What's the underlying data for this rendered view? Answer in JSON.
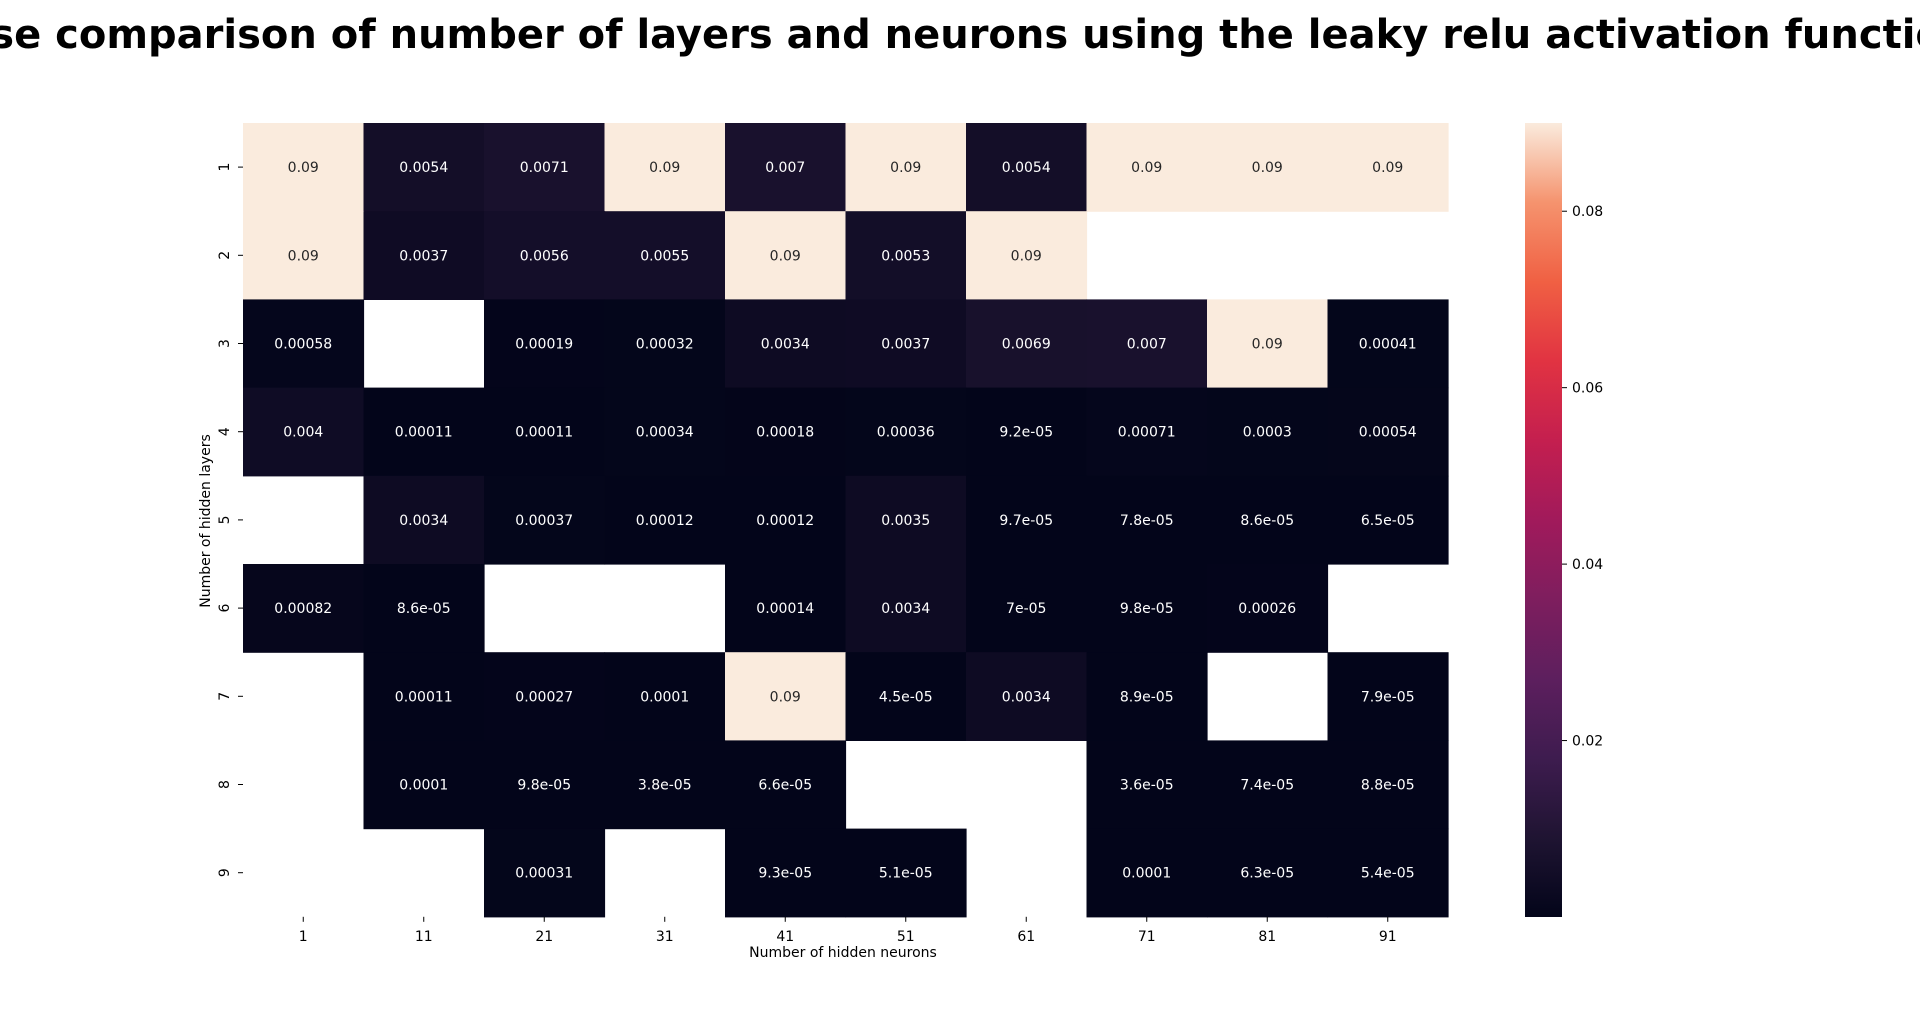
{
  "chart_data": {
    "type": "heatmap",
    "title": "mse comparison of number of layers and neurons using the leaky relu activation function",
    "xlabel": "Number of hidden neurons",
    "ylabel": "Number of hidden layers",
    "x_categories": [
      "1",
      "11",
      "21",
      "31",
      "41",
      "51",
      "61",
      "71",
      "81",
      "91"
    ],
    "y_categories": [
      "1",
      "2",
      "3",
      "4",
      "5",
      "6",
      "7",
      "8",
      "9"
    ],
    "colorscale": "rocket",
    "vmin": 0.0,
    "vmax": 0.09,
    "colorbar_ticks": [
      "0.02",
      "0.04",
      "0.06",
      "0.08"
    ],
    "values": [
      [
        "0.09",
        "0.0054",
        "0.0071",
        "0.09",
        "0.007",
        "0.09",
        "0.0054",
        "0.09",
        "0.09",
        "0.09"
      ],
      [
        "0.09",
        "0.0037",
        "0.0056",
        "0.0055",
        "0.09",
        "0.0053",
        "0.09",
        null,
        null,
        null
      ],
      [
        "0.00058",
        null,
        "0.00019",
        "0.00032",
        "0.0034",
        "0.0037",
        "0.0069",
        "0.007",
        "0.09",
        "0.00041"
      ],
      [
        "0.004",
        "0.00011",
        "0.00011",
        "0.00034",
        "0.00018",
        "0.00036",
        "9.2e-05",
        "0.00071",
        "0.0003",
        "0.00054"
      ],
      [
        null,
        "0.0034",
        "0.00037",
        "0.00012",
        "0.00012",
        "0.0035",
        "9.7e-05",
        "7.8e-05",
        "8.6e-05",
        "6.5e-05"
      ],
      [
        "0.00082",
        "8.6e-05",
        null,
        null,
        "0.00014",
        "0.0034",
        "7e-05",
        "9.8e-05",
        "0.00026",
        null
      ],
      [
        null,
        "0.00011",
        "0.00027",
        "0.0001",
        "0.09",
        "4.5e-05",
        "0.0034",
        "8.9e-05",
        null,
        "7.9e-05"
      ],
      [
        null,
        "0.0001",
        "9.8e-05",
        "3.8e-05",
        "6.6e-05",
        null,
        null,
        "3.6e-05",
        "7.4e-05",
        "8.8e-05"
      ],
      [
        null,
        null,
        "0.00031",
        null,
        "9.3e-05",
        "5.1e-05",
        null,
        "0.0001",
        "6.3e-05",
        "5.4e-05"
      ]
    ]
  }
}
